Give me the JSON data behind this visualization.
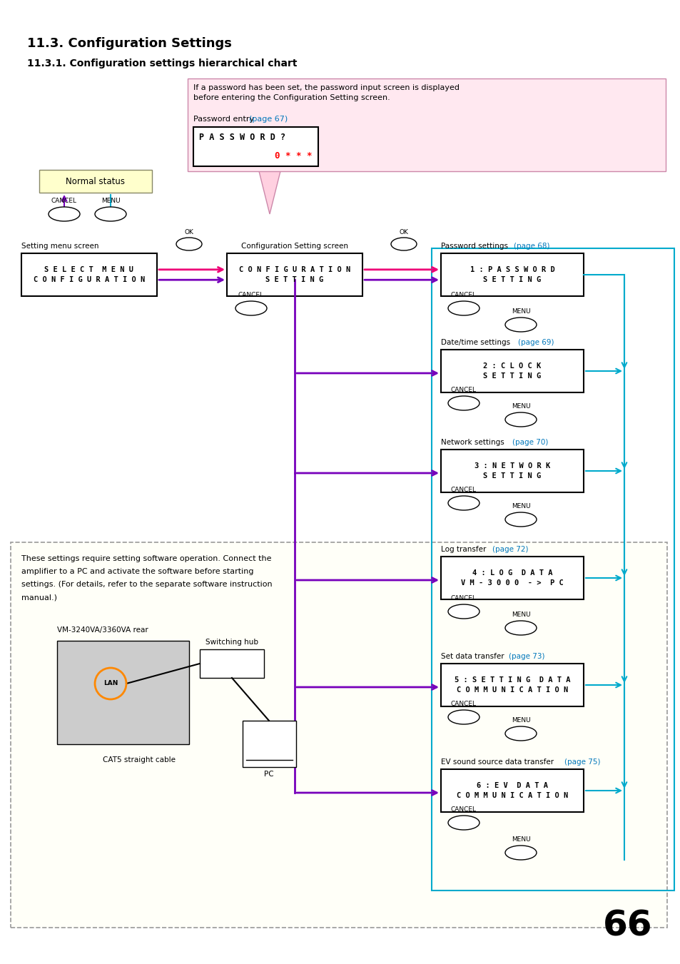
{
  "title1": "11.3. Configuration Settings",
  "title2": "11.3.1. Configuration settings hierarchical chart",
  "page_num": "66",
  "colors": {
    "magenta": "#EE0077",
    "cyan": "#00AACC",
    "purple": "#7700BB",
    "orange": "#FF8800",
    "link_blue": "#0077BB",
    "black": "#000000",
    "yellow_bg": "#FFFFEE",
    "pink_bg": "#FFE8F0",
    "normal_status_bg": "#FFFFCC",
    "dashed_bg": "#FFFFF5",
    "dashed_border": "#999999",
    "pink_border": "#CC88AA"
  },
  "note_text": "If a password has been set, the password input screen is displayed\nbefore entering the Configuration Setting screen.",
  "software_note_lines": [
    "These settings require setting software operation. Connect the",
    "amplifier to a PC and activate the software before starting",
    "settings. (For details, refer to the separate software instruction",
    "manual.)"
  ],
  "page_refs": {
    "password_entry": "(page 67)",
    "password_settings": "(page 68)",
    "date_time": "(page 69)",
    "network": "(page 70)",
    "log": "(page 72)",
    "set_data": "(page 73)",
    "ev": "(page 75)"
  }
}
